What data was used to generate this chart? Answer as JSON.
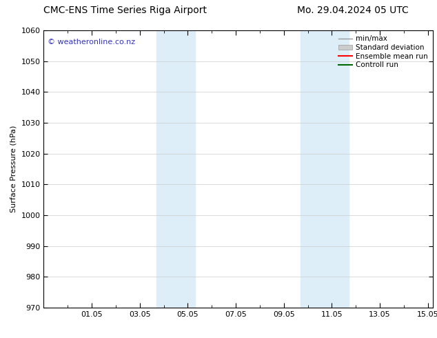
{
  "title_left": "CMC-ENS Time Series Riga Airport",
  "title_right": "Mo. 29.04.2024 05 UTC",
  "ylabel": "Surface Pressure (hPa)",
  "ylim": [
    970,
    1060
  ],
  "yticks": [
    970,
    980,
    990,
    1000,
    1010,
    1020,
    1030,
    1040,
    1050,
    1060
  ],
  "xlim": [
    0,
    16.2
  ],
  "xtick_labels": [
    "01.05",
    "03.05",
    "05.05",
    "07.05",
    "09.05",
    "11.05",
    "13.05",
    "15.05"
  ],
  "xtick_positions": [
    2,
    4,
    6,
    8,
    10,
    12,
    14,
    16
  ],
  "shaded_regions": [
    {
      "x_start": 4.7,
      "x_end": 6.3,
      "color": "#ddeef8"
    },
    {
      "x_start": 10.7,
      "x_end": 12.7,
      "color": "#ddeef8"
    }
  ],
  "watermark_text": "© weatheronline.co.nz",
  "watermark_color": "#3333bb",
  "watermark_fontsize": 8,
  "legend_labels": [
    "min/max",
    "Standard deviation",
    "Ensemble mean run",
    "Controll run"
  ],
  "legend_colors_line": [
    "#999999",
    "#bbbbbb",
    "#ff0000",
    "#006600"
  ],
  "bg_color": "#ffffff",
  "grid_color": "#cccccc",
  "title_fontsize": 10,
  "ylabel_fontsize": 8,
  "tick_fontsize": 8,
  "legend_fontsize": 7.5
}
